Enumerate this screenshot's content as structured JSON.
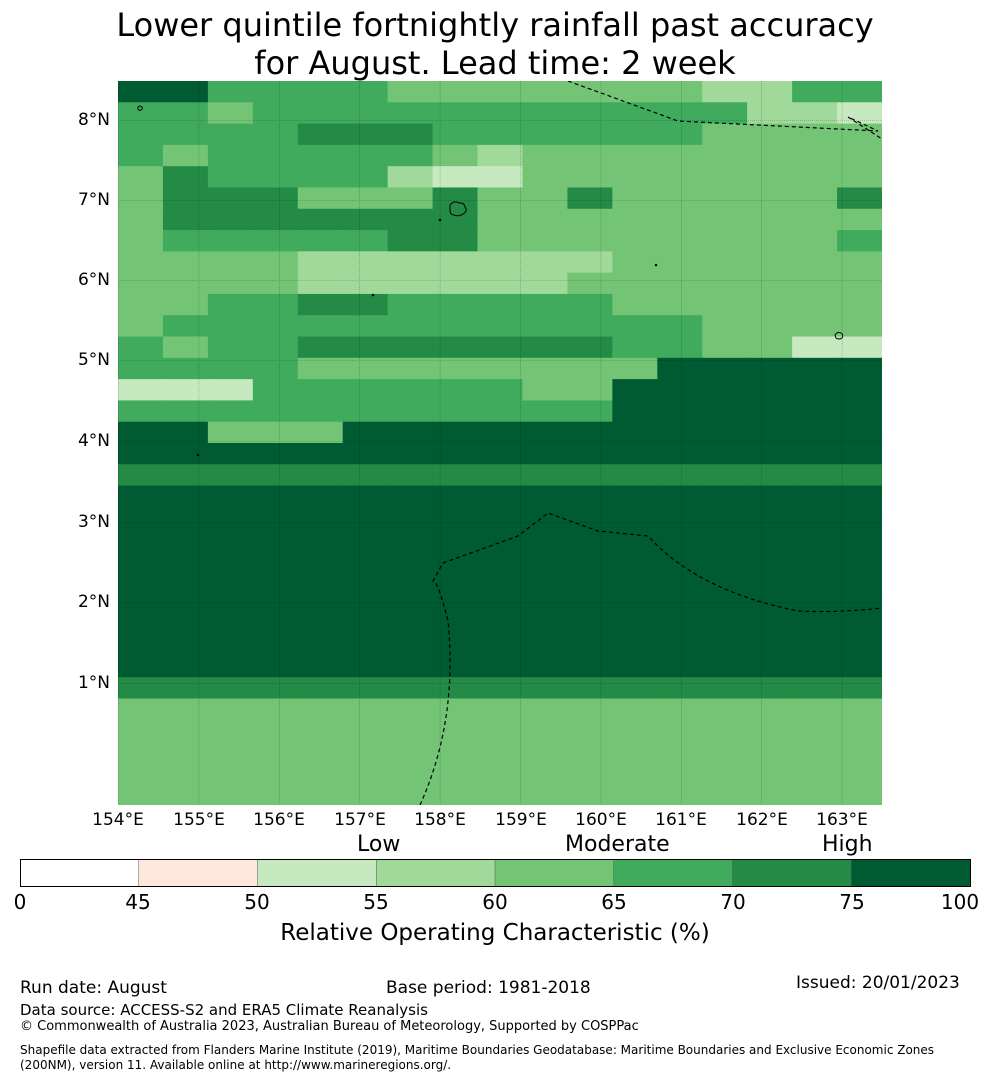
{
  "title": {
    "line1": "Lower quintile fortnightly rainfall past accuracy",
    "line2": "for August. Lead time: 2 week"
  },
  "map": {
    "lat_labels": [
      "8°N",
      "7°N",
      "6°N",
      "5°N",
      "4°N",
      "3°N",
      "2°N",
      "1°N"
    ],
    "lon_labels": [
      "154°E",
      "155°E",
      "156°E",
      "157°E",
      "158°E",
      "159°E",
      "160°E",
      "161°E",
      "162°E",
      "163°E"
    ],
    "grid_rows": [
      "77444433333332244",
      "44344444444444221",
      "44445554444443333",
      "43444443233333333",
      "35444421133333333",
      "35553335335333335",
      "35555555333333333",
      "34444466333333334",
      "33332222222333333",
      "33332222223333333",
      "33445544444333333",
      "34444444444443333",
      "43445555555443311",
      "44443333333377777",
      "11144444433777777",
      "44444444444777777",
      "77333777777777777",
      "77777777777777777",
      "66666666666666666",
      "77777777777777777",
      "77777777777777777",
      "77777777777777777",
      "77777777777777777",
      "77777777777777777",
      "77777777777777777",
      "77777777777777777",
      "77777777777777777",
      "77777777777777777",
      "66666666666666666",
      "33333333333333333",
      "33333333333333333",
      "33333333333333333",
      "33333333333333333",
      "33333333333333333"
    ]
  },
  "categories": {
    "low": "Low",
    "moderate": "Moderate",
    "high": "High"
  },
  "colorbar": {
    "ticks": [
      "0",
      "45",
      "50",
      "55",
      "60",
      "65",
      "70",
      "75",
      "100"
    ],
    "colors": [
      "#ffffff",
      "#fee8de",
      "#c7e9c0",
      "#a1d99b",
      "#74c476",
      "#41ab5d",
      "#238b45",
      "#005a32"
    ],
    "label": "Relative Operating Characteristic (%)"
  },
  "footer": {
    "run_date": "Run date: August",
    "base_period": "Base period: 1981-2018",
    "issued": "Issued: 20/01/2023",
    "data_source": "Data source: ACCESS-S2 and ERA5 Climate Reanalysis",
    "copyright": "© Commonwealth of Australia 2023, Australian Bureau of Meteorology, Supported by COSPPac",
    "shapefile_line1": "Shapefile data extracted from Flanders Marine Institute (2019), Maritime Boundaries Geodatabase: Maritime Boundaries and Exclusive Economic Zones",
    "shapefile_line2": "(200NM), version 11. Available online at http://www.marineregions.org/."
  }
}
